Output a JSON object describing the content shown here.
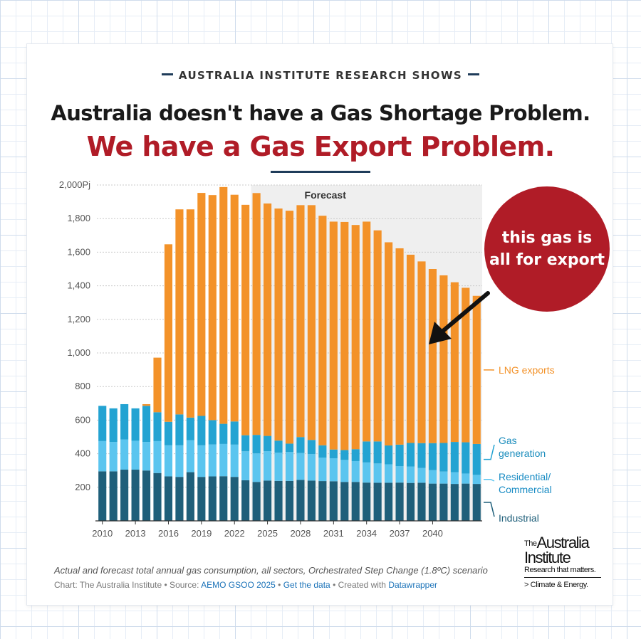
{
  "header": {
    "kicker": "AUSTRALIA INSTITUTE RESEARCH SHOWS",
    "headline_line1": "Australia doesn't have a Gas Shortage Problem.",
    "headline_line2": "We have a Gas Export Problem."
  },
  "callout": {
    "line1": "this gas is",
    "line2": "all for export"
  },
  "caption": "Actual and forecast total annual gas consumption, all sectors, Orchestrated Step Change (1.8ºC) scenario",
  "source": {
    "prefix": "Chart: The Australia Institute • Source: ",
    "link1": "AEMO GSOO 2025",
    "sep1": " • ",
    "link2": "Get the data",
    "sep2": " • Created with ",
    "link3": "Datawrapper"
  },
  "logo": {
    "the": "The",
    "line1": "Australia",
    "line2": "Institute",
    "tagline": "Research that matters.",
    "sub": "> Climate & Energy."
  },
  "colors": {
    "industrial": "#1f5f7a",
    "residential": "#5bc5ef",
    "gas_generation": "#23a3d2",
    "lng": "#f39229",
    "accent_red": "#b01c27",
    "navy": "#1f3c5a"
  },
  "chart_data": {
    "type": "bar",
    "stacked": true,
    "x": [
      2010,
      2011,
      2012,
      2013,
      2014,
      2015,
      2016,
      2017,
      2018,
      2019,
      2020,
      2021,
      2022,
      2023,
      2024,
      2025,
      2026,
      2027,
      2028,
      2029,
      2030,
      2031,
      2032,
      2033,
      2034,
      2035,
      2036,
      2037,
      2038,
      2039,
      2040,
      2041,
      2042,
      2043,
      2044
    ],
    "x_tick_labels": [
      "2010",
      "2013",
      "2016",
      "2019",
      "2022",
      "2025",
      "2028",
      "2031",
      "2034",
      "2037",
      "2040"
    ],
    "y_tick_labels": [
      "2,000Pj",
      "1,800",
      "1,600",
      "1,400",
      "1,200",
      "1,000",
      "800",
      "600",
      "400",
      "200"
    ],
    "ylim": [
      0,
      2000
    ],
    "forecast_label": "Forecast",
    "forecast_range": [
      2024,
      2044
    ],
    "series": [
      {
        "name": "Industrial",
        "color": "#1f5f7a",
        "values": [
          295,
          295,
          305,
          305,
          300,
          285,
          265,
          262,
          290,
          262,
          265,
          266,
          262,
          242,
          232,
          240,
          238,
          238,
          244,
          240,
          237,
          236,
          232,
          232,
          228,
          227,
          227,
          228,
          226,
          227,
          222,
          222,
          220,
          222,
          220
        ]
      },
      {
        "name": "Residential/ Commercial",
        "color": "#5bc5ef",
        "values": [
          180,
          175,
          180,
          172,
          170,
          190,
          185,
          188,
          190,
          188,
          190,
          192,
          192,
          172,
          170,
          175,
          168,
          172,
          160,
          158,
          140,
          137,
          131,
          124,
          120,
          115,
          110,
          98,
          98,
          88,
          80,
          72,
          70,
          60,
          54
        ]
      },
      {
        "name": "Gas generation",
        "color": "#23a3d2",
        "values": [
          210,
          200,
          210,
          193,
          215,
          172,
          140,
          184,
          135,
          175,
          145,
          120,
          138,
          96,
          110,
          91,
          72,
          50,
          95,
          84,
          73,
          52,
          59,
          71,
          125,
          131,
          112,
          128,
          140,
          148,
          161,
          170,
          180,
          186,
          184
        ]
      },
      {
        "name": "LNG exports",
        "color": "#f39229",
        "values": [
          0,
          0,
          0,
          0,
          10,
          325,
          1057,
          1221,
          1240,
          1328,
          1340,
          1410,
          1350,
          1372,
          1440,
          1384,
          1382,
          1387,
          1381,
          1398,
          1367,
          1357,
          1358,
          1335,
          1309,
          1257,
          1210,
          1169,
          1121,
          1082,
          1037,
          998,
          951,
          920,
          882
        ]
      }
    ]
  }
}
